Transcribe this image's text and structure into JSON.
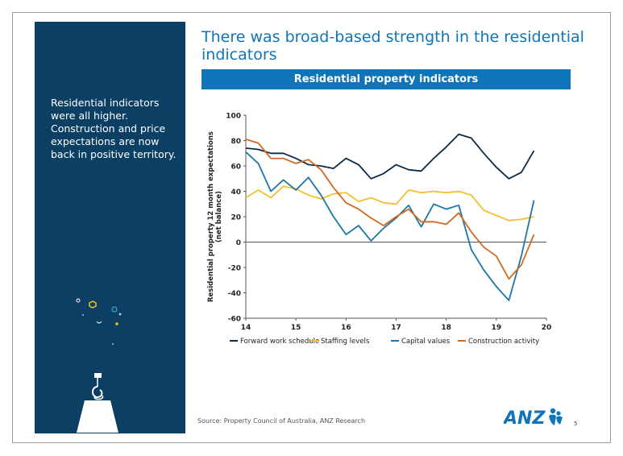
{
  "slide": {
    "title": "There was broad-based strength in the residential indicators",
    "side_text": "Residential indicators were all higher. Construction and price expectations are now back in positive territory.",
    "chart_header": "Residential property indicators",
    "source": "Source: Property Council of Australia, ANZ Research",
    "page_number": "5",
    "logo_text": "ANZ"
  },
  "colors": {
    "panel": "#0b3f64",
    "accent": "#0f74b8",
    "forward_work": "#0d2a44",
    "staffing": "#f5bf2b",
    "capital": "#1d77a6",
    "construction": "#d2691e"
  },
  "chart_data": {
    "type": "line",
    "title": "Residential property indicators",
    "xlabel": "",
    "ylabel": "Residential property 12 month expectations (net balance)",
    "xlim": [
      14,
      20
    ],
    "ylim": [
      -60,
      100
    ],
    "xticks": [
      "14",
      "15",
      "16",
      "17",
      "18",
      "19",
      "20"
    ],
    "yticks": [
      "100",
      "80",
      "60",
      "40",
      "20",
      "0",
      "-20",
      "-40",
      "-60"
    ],
    "grid": false,
    "legend": "bottom",
    "x": [
      14.0,
      14.25,
      14.5,
      14.75,
      15.0,
      15.25,
      15.5,
      15.75,
      16.0,
      16.25,
      16.5,
      16.75,
      17.0,
      17.25,
      17.5,
      17.75,
      18.0,
      18.25,
      18.5,
      18.75,
      19.0,
      19.25,
      19.5,
      19.75
    ],
    "series": [
      {
        "name": "Forward work schedule",
        "color": "#0d2a44",
        "values": [
          74,
          73,
          70,
          70,
          66,
          61,
          60,
          58,
          66,
          61,
          50,
          54,
          61,
          57,
          56,
          66,
          75,
          85,
          82,
          70,
          59,
          50,
          55,
          72
        ]
      },
      {
        "name": "Staffing levels",
        "color": "#f5bf2b",
        "values": [
          35,
          41,
          35,
          44,
          42,
          37,
          34,
          38,
          39,
          32,
          35,
          31,
          30,
          41,
          39,
          40,
          39,
          40,
          37,
          25,
          21,
          17,
          18,
          20
        ]
      },
      {
        "name": "Capital values",
        "color": "#1d77a6",
        "values": [
          71,
          62,
          40,
          49,
          41,
          51,
          37,
          20,
          6,
          13,
          1,
          11,
          19,
          29,
          12,
          30,
          26,
          29,
          -6,
          -22,
          -35,
          -46,
          -11,
          33
        ]
      },
      {
        "name": "Construction activity",
        "color": "#d2691e",
        "values": [
          81,
          78,
          66,
          66,
          62,
          65,
          57,
          43,
          31,
          26,
          19,
          13,
          20,
          26,
          16,
          16,
          14,
          23,
          8,
          -4,
          -11,
          -29,
          -18,
          6
        ]
      }
    ]
  }
}
